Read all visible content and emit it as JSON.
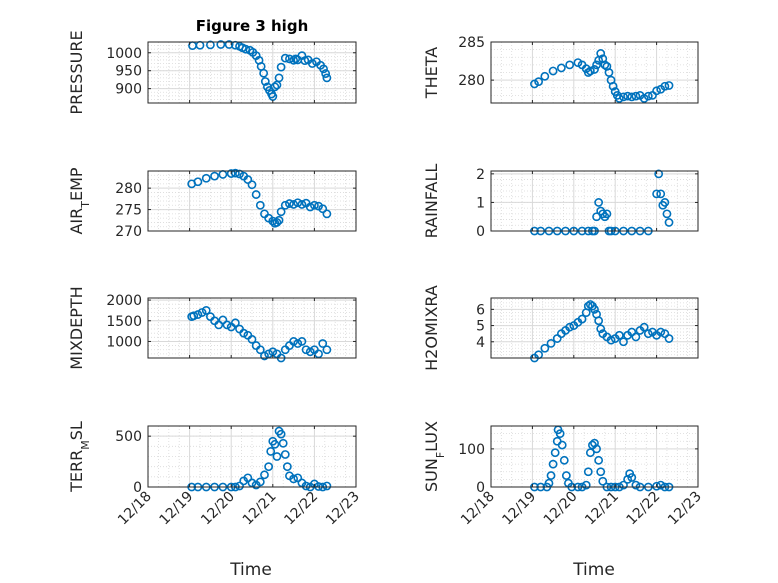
{
  "figure": {
    "title": "Figure 3 high",
    "x_tick_labels": [
      "12/18",
      "12/19",
      "12/20",
      "12/21",
      "12/22",
      "12/23"
    ],
    "xlabel": "Time"
  },
  "colors": {
    "marker": "#0072BD",
    "axis": "#262626",
    "grid": "#d9d9d9"
  },
  "chart_data": [
    {
      "type": "scatter",
      "marker": "open-circle",
      "grid": true,
      "ylabel": "PRESSURE",
      "ylim": [
        860,
        1030
      ],
      "yticks": [
        900,
        950,
        1000
      ],
      "xlim": [
        0,
        5
      ],
      "xaxis": "days since 12/18 00:00",
      "points": [
        [
          1.07,
          1020
        ],
        [
          1.25,
          1021
        ],
        [
          1.5,
          1022
        ],
        [
          1.75,
          1023
        ],
        [
          1.95,
          1023
        ],
        [
          2.1,
          1021
        ],
        [
          2.2,
          1018
        ],
        [
          2.27,
          1014
        ],
        [
          2.35,
          1010
        ],
        [
          2.45,
          1007
        ],
        [
          2.52,
          1001
        ],
        [
          2.6,
          992
        ],
        [
          2.67,
          979
        ],
        [
          2.72,
          962
        ],
        [
          2.78,
          943
        ],
        [
          2.82,
          920
        ],
        [
          2.87,
          905
        ],
        [
          2.92,
          895
        ],
        [
          2.97,
          885
        ],
        [
          3.0,
          878
        ],
        [
          3.05,
          905
        ],
        [
          3.1,
          910
        ],
        [
          3.15,
          930
        ],
        [
          3.2,
          960
        ],
        [
          3.3,
          985
        ],
        [
          3.4,
          983
        ],
        [
          3.5,
          979
        ],
        [
          3.55,
          983
        ],
        [
          3.6,
          980
        ],
        [
          3.7,
          992
        ],
        [
          3.77,
          978
        ],
        [
          3.85,
          980
        ],
        [
          3.95,
          970
        ],
        [
          4.05,
          975
        ],
        [
          4.15,
          965
        ],
        [
          4.22,
          955
        ],
        [
          4.27,
          942
        ],
        [
          4.3,
          930
        ]
      ]
    },
    {
      "type": "scatter",
      "marker": "open-circle",
      "grid": true,
      "ylabel": "THETA",
      "ylim": [
        277,
        285
      ],
      "yticks": [
        280,
        285
      ],
      "xlim": [
        0,
        5
      ],
      "xaxis": "days since 12/18 00:00",
      "points": [
        [
          1.05,
          279.5
        ],
        [
          1.15,
          279.8
        ],
        [
          1.3,
          280.5
        ],
        [
          1.5,
          281.2
        ],
        [
          1.7,
          281.6
        ],
        [
          1.9,
          282.0
        ],
        [
          2.1,
          282.3
        ],
        [
          2.2,
          282.0
        ],
        [
          2.3,
          281.5
        ],
        [
          2.35,
          281.0
        ],
        [
          2.4,
          281.2
        ],
        [
          2.5,
          281.4
        ],
        [
          2.55,
          282.0
        ],
        [
          2.6,
          282.6
        ],
        [
          2.65,
          283.5
        ],
        [
          2.7,
          282.8
        ],
        [
          2.75,
          282.0
        ],
        [
          2.8,
          281.8
        ],
        [
          2.85,
          281.0
        ],
        [
          2.9,
          280.0
        ],
        [
          2.95,
          279.2
        ],
        [
          3.0,
          278.5
        ],
        [
          3.05,
          278.0
        ],
        [
          3.1,
          277.6
        ],
        [
          3.2,
          277.8
        ],
        [
          3.3,
          277.9
        ],
        [
          3.4,
          277.8
        ],
        [
          3.5,
          277.9
        ],
        [
          3.6,
          278.0
        ],
        [
          3.7,
          277.6
        ],
        [
          3.8,
          277.9
        ],
        [
          3.9,
          278.0
        ],
        [
          4.0,
          278.6
        ],
        [
          4.1,
          278.8
        ],
        [
          4.2,
          279.2
        ],
        [
          4.3,
          279.3
        ]
      ]
    },
    {
      "type": "scatter",
      "marker": "open-circle",
      "grid": true,
      "ylabel": "AIR_TEMP",
      "ylim": [
        270,
        284
      ],
      "yticks": [
        270,
        275,
        280
      ],
      "xlim": [
        0,
        5
      ],
      "xaxis": "days since 12/18 00:00",
      "points": [
        [
          1.05,
          281.0
        ],
        [
          1.2,
          281.5
        ],
        [
          1.4,
          282.3
        ],
        [
          1.6,
          282.8
        ],
        [
          1.8,
          283.2
        ],
        [
          2.0,
          283.4
        ],
        [
          2.1,
          283.5
        ],
        [
          2.2,
          283.3
        ],
        [
          2.3,
          282.8
        ],
        [
          2.4,
          282.0
        ],
        [
          2.5,
          280.8
        ],
        [
          2.6,
          278.5
        ],
        [
          2.7,
          276.0
        ],
        [
          2.8,
          274.0
        ],
        [
          2.9,
          273.0
        ],
        [
          3.0,
          272.3
        ],
        [
          3.05,
          271.8
        ],
        [
          3.1,
          272.0
        ],
        [
          3.15,
          272.5
        ],
        [
          3.2,
          274.5
        ],
        [
          3.3,
          276.0
        ],
        [
          3.4,
          276.4
        ],
        [
          3.5,
          276.2
        ],
        [
          3.6,
          276.6
        ],
        [
          3.7,
          276.2
        ],
        [
          3.8,
          276.5
        ],
        [
          3.9,
          275.6
        ],
        [
          4.0,
          276.0
        ],
        [
          4.1,
          275.8
        ],
        [
          4.2,
          275.2
        ],
        [
          4.3,
          274.0
        ]
      ]
    },
    {
      "type": "scatter",
      "marker": "open-circle",
      "grid": true,
      "ylabel": "RAINFALL",
      "ylim": [
        0,
        2.1
      ],
      "yticks": [
        0,
        1,
        2
      ],
      "xlim": [
        0,
        5
      ],
      "xaxis": "days since 12/18 00:00",
      "points": [
        [
          1.05,
          0
        ],
        [
          1.2,
          0
        ],
        [
          1.4,
          0
        ],
        [
          1.6,
          0
        ],
        [
          1.8,
          0
        ],
        [
          2.0,
          0
        ],
        [
          2.2,
          0
        ],
        [
          2.35,
          0
        ],
        [
          2.45,
          0
        ],
        [
          2.5,
          0
        ],
        [
          2.55,
          0.5
        ],
        [
          2.6,
          1.0
        ],
        [
          2.65,
          0.7
        ],
        [
          2.7,
          0.6
        ],
        [
          2.75,
          0.5
        ],
        [
          2.8,
          0.6
        ],
        [
          2.85,
          0.0
        ],
        [
          2.9,
          0.0
        ],
        [
          3.0,
          0
        ],
        [
          3.2,
          0
        ],
        [
          3.4,
          0
        ],
        [
          3.6,
          0
        ],
        [
          3.8,
          0
        ],
        [
          4.0,
          1.3
        ],
        [
          4.05,
          2.0
        ],
        [
          4.1,
          1.3
        ],
        [
          4.15,
          0.9
        ],
        [
          4.2,
          1.0
        ],
        [
          4.25,
          0.6
        ],
        [
          4.3,
          0.3
        ]
      ]
    },
    {
      "type": "scatter",
      "marker": "open-circle",
      "grid": true,
      "ylabel": "MIXDEPTH",
      "ylim": [
        600,
        2050
      ],
      "yticks": [
        1000,
        1500,
        2000
      ],
      "xlim": [
        0,
        5
      ],
      "xaxis": "days since 12/18 00:00",
      "points": [
        [
          1.05,
          1600
        ],
        [
          1.1,
          1620
        ],
        [
          1.2,
          1650
        ],
        [
          1.3,
          1700
        ],
        [
          1.4,
          1750
        ],
        [
          1.5,
          1600
        ],
        [
          1.6,
          1500
        ],
        [
          1.7,
          1400
        ],
        [
          1.8,
          1520
        ],
        [
          1.9,
          1400
        ],
        [
          2.0,
          1350
        ],
        [
          2.1,
          1450
        ],
        [
          2.2,
          1300
        ],
        [
          2.3,
          1200
        ],
        [
          2.4,
          1150
        ],
        [
          2.5,
          1050
        ],
        [
          2.6,
          900
        ],
        [
          2.7,
          800
        ],
        [
          2.8,
          650
        ],
        [
          2.9,
          700
        ],
        [
          3.0,
          750
        ],
        [
          3.1,
          700
        ],
        [
          3.2,
          600
        ],
        [
          3.3,
          800
        ],
        [
          3.4,
          900
        ],
        [
          3.5,
          1000
        ],
        [
          3.6,
          950
        ],
        [
          3.7,
          1000
        ],
        [
          3.8,
          800
        ],
        [
          3.9,
          750
        ],
        [
          4.0,
          800
        ],
        [
          4.1,
          700
        ],
        [
          4.2,
          950
        ],
        [
          4.3,
          800
        ]
      ]
    },
    {
      "type": "scatter",
      "marker": "open-circle",
      "grid": true,
      "ylabel": "H2OMIXRA",
      "ylim": [
        3,
        6.7
      ],
      "yticks": [
        4,
        5,
        6
      ],
      "xlim": [
        0,
        5
      ],
      "xaxis": "days since 12/18 00:00",
      "points": [
        [
          1.05,
          3.0
        ],
        [
          1.15,
          3.2
        ],
        [
          1.3,
          3.6
        ],
        [
          1.45,
          3.9
        ],
        [
          1.6,
          4.2
        ],
        [
          1.7,
          4.5
        ],
        [
          1.8,
          4.7
        ],
        [
          1.9,
          4.9
        ],
        [
          2.0,
          5.0
        ],
        [
          2.1,
          5.2
        ],
        [
          2.2,
          5.4
        ],
        [
          2.3,
          5.8
        ],
        [
          2.35,
          6.2
        ],
        [
          2.4,
          6.3
        ],
        [
          2.45,
          6.2
        ],
        [
          2.5,
          6.0
        ],
        [
          2.55,
          5.7
        ],
        [
          2.6,
          5.3
        ],
        [
          2.65,
          4.8
        ],
        [
          2.7,
          4.5
        ],
        [
          2.8,
          4.3
        ],
        [
          2.9,
          4.1
        ],
        [
          3.0,
          4.2
        ],
        [
          3.1,
          4.4
        ],
        [
          3.2,
          4.0
        ],
        [
          3.3,
          4.4
        ],
        [
          3.4,
          4.6
        ],
        [
          3.5,
          4.3
        ],
        [
          3.6,
          4.7
        ],
        [
          3.7,
          4.9
        ],
        [
          3.8,
          4.5
        ],
        [
          3.9,
          4.6
        ],
        [
          4.0,
          4.4
        ],
        [
          4.1,
          4.6
        ],
        [
          4.2,
          4.5
        ],
        [
          4.3,
          4.2
        ]
      ]
    },
    {
      "type": "scatter",
      "marker": "open-circle",
      "grid": true,
      "ylabel": "TERR_MSL",
      "ylim": [
        0,
        600
      ],
      "yticks": [
        0,
        500
      ],
      "xlim": [
        0,
        5
      ],
      "xaxis": "days since 12/18 00:00",
      "points": [
        [
          1.05,
          0
        ],
        [
          1.2,
          0
        ],
        [
          1.4,
          0
        ],
        [
          1.6,
          0
        ],
        [
          1.8,
          0
        ],
        [
          2.0,
          0
        ],
        [
          2.1,
          0
        ],
        [
          2.2,
          10
        ],
        [
          2.3,
          60
        ],
        [
          2.4,
          90
        ],
        [
          2.5,
          40
        ],
        [
          2.6,
          20
        ],
        [
          2.7,
          50
        ],
        [
          2.8,
          120
        ],
        [
          2.9,
          200
        ],
        [
          2.95,
          350
        ],
        [
          3.0,
          450
        ],
        [
          3.05,
          420
        ],
        [
          3.1,
          300
        ],
        [
          3.15,
          550
        ],
        [
          3.2,
          520
        ],
        [
          3.25,
          430
        ],
        [
          3.3,
          320
        ],
        [
          3.35,
          200
        ],
        [
          3.4,
          110
        ],
        [
          3.5,
          80
        ],
        [
          3.6,
          90
        ],
        [
          3.7,
          40
        ],
        [
          3.8,
          10
        ],
        [
          3.9,
          0
        ],
        [
          4.0,
          30
        ],
        [
          4.1,
          5
        ],
        [
          4.2,
          0
        ],
        [
          4.3,
          10
        ]
      ]
    },
    {
      "type": "scatter",
      "marker": "open-circle",
      "grid": true,
      "ylabel": "SUN_FLUX",
      "ylim": [
        0,
        160
      ],
      "yticks": [
        0,
        100
      ],
      "xlim": [
        0,
        5
      ],
      "xaxis": "days since 12/18 00:00",
      "points": [
        [
          1.05,
          0
        ],
        [
          1.2,
          0
        ],
        [
          1.35,
          0
        ],
        [
          1.4,
          10
        ],
        [
          1.45,
          30
        ],
        [
          1.5,
          60
        ],
        [
          1.55,
          90
        ],
        [
          1.6,
          120
        ],
        [
          1.62,
          150
        ],
        [
          1.67,
          140
        ],
        [
          1.72,
          110
        ],
        [
          1.77,
          70
        ],
        [
          1.82,
          30
        ],
        [
          1.87,
          10
        ],
        [
          1.95,
          0
        ],
        [
          2.1,
          0
        ],
        [
          2.2,
          0
        ],
        [
          2.3,
          5
        ],
        [
          2.35,
          40
        ],
        [
          2.4,
          90
        ],
        [
          2.45,
          110
        ],
        [
          2.5,
          115
        ],
        [
          2.55,
          100
        ],
        [
          2.6,
          70
        ],
        [
          2.65,
          40
        ],
        [
          2.7,
          15
        ],
        [
          2.8,
          0
        ],
        [
          2.9,
          0
        ],
        [
          3.0,
          0
        ],
        [
          3.1,
          0
        ],
        [
          3.2,
          5
        ],
        [
          3.3,
          20
        ],
        [
          3.35,
          35
        ],
        [
          3.4,
          25
        ],
        [
          3.5,
          5
        ],
        [
          3.6,
          0
        ],
        [
          3.8,
          0
        ],
        [
          4.0,
          2
        ],
        [
          4.1,
          5
        ],
        [
          4.2,
          0
        ],
        [
          4.3,
          0
        ]
      ]
    }
  ]
}
